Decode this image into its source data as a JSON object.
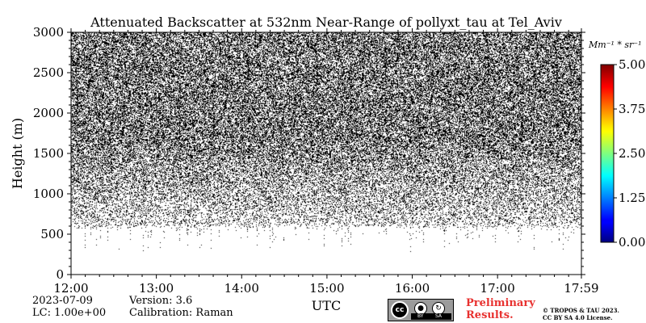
{
  "chart_data": {
    "type": "heatmap",
    "title": "Attenuated Backscatter at 532nm Near-Range of pollyxt_tau at Tel_Aviv",
    "xlabel": "UTC",
    "ylabel": "Height (m)",
    "x_ticks": [
      "12:00",
      "13:00",
      "14:00",
      "15:00",
      "16:00",
      "17:00",
      "17:59"
    ],
    "x_tick_hours": [
      12,
      13,
      14,
      15,
      16,
      17,
      17.983
    ],
    "xlim_hours": [
      12,
      17.983
    ],
    "y_ticks": [
      "0",
      "500",
      "1000",
      "1500",
      "2000",
      "2500",
      "3000"
    ],
    "y_tick_values": [
      0,
      500,
      1000,
      1500,
      2000,
      2500,
      3000
    ],
    "ylim": [
      0,
      3000
    ],
    "signal_base_m": 620,
    "colorbar": {
      "unit_label": "Mm⁻¹ * sr⁻¹",
      "range": [
        0.0,
        5.0
      ],
      "ticks": [
        "0.00",
        "1.25",
        "2.50",
        "3.75",
        "5.00"
      ],
      "tick_values": [
        0,
        1.25,
        2.5,
        3.75,
        5.0
      ],
      "colormap": "jet"
    },
    "grid": false
  },
  "info": {
    "date": "2023-07-09",
    "lc": "LC: 1.00e+00",
    "version": "Version: 3.6",
    "calibration": "Calibration: Raman"
  },
  "badge": {
    "cc": "cc",
    "by": "BY",
    "sa": "SA"
  },
  "footer": {
    "preliminary_line1": "Preliminary",
    "preliminary_line2": "Results.",
    "copyright_line1": "© TROPOS & TAU 2023.",
    "copyright_line2": "CC BY SA 4.0 License."
  },
  "colors": {
    "noise": "#000000",
    "preliminary": "#e8312f",
    "badge": "#9b9b9b"
  }
}
